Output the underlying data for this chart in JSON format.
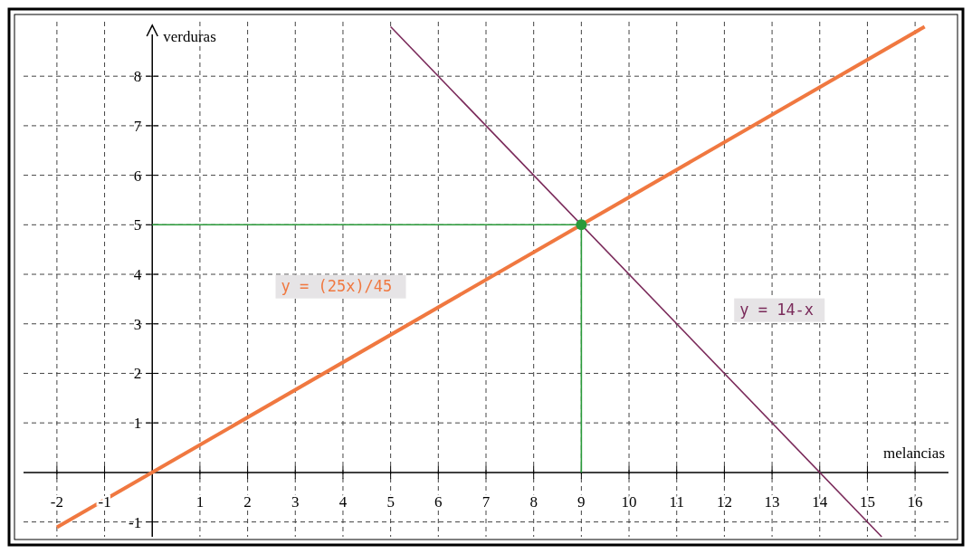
{
  "chart_data": {
    "type": "line",
    "xlabel": "melancias",
    "ylabel": "verduras",
    "xlim": [
      -2.7,
      16.7
    ],
    "ylim": [
      -1.3,
      9.1
    ],
    "xticks": [
      -2,
      -1,
      1,
      2,
      3,
      4,
      5,
      6,
      7,
      8,
      9,
      10,
      11,
      12,
      13,
      14,
      15,
      16
    ],
    "yticks": [
      -1,
      1,
      2,
      3,
      4,
      5,
      6,
      7,
      8
    ],
    "grid": true,
    "series": [
      {
        "name": "y = (25x)/45",
        "color": "#f07840",
        "x": [
          -2,
          16.2
        ],
        "values": [
          -1.11,
          9
        ]
      },
      {
        "name": "y = 14-x",
        "color": "#7a2a5a",
        "x": [
          5,
          15.3
        ],
        "values": [
          9,
          -1.3
        ]
      },
      {
        "type": "line",
        "color": "#2a9a3a",
        "x": [
          0,
          9,
          9
        ],
        "values": [
          5,
          5,
          0
        ]
      },
      {
        "type": "scatter",
        "color": "#2a9a3a",
        "x": [
          9
        ],
        "values": [
          5
        ]
      }
    ]
  }
}
